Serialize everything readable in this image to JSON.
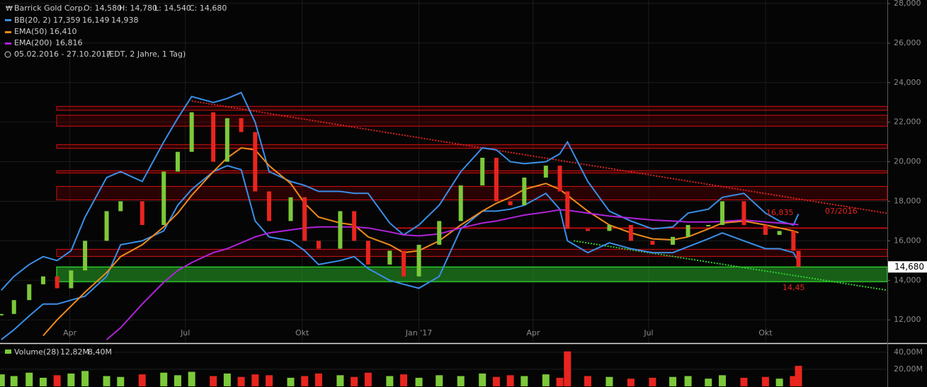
{
  "header": {
    "symbol": "Barrick Gold Corp.",
    "open": "O: 14,580",
    "high": "H: 14,780",
    "low": "L: 14,540",
    "close": "C: 14,680",
    "range": "05.02.2016 - 27.10.2017",
    "range_note": "(EDT, 2 Jahre, 1 Tag)"
  },
  "chart_data": [
    {
      "type": "candlestick",
      "x": [
        2,
        12,
        24,
        35,
        46,
        57,
        68,
        85,
        96,
        113,
        130,
        141,
        152,
        169,
        180,
        191,
        202,
        213,
        230,
        241,
        252,
        269,
        280,
        291,
        308,
        319,
        331,
        347,
        364,
        381,
        392,
        403,
        414,
        431,
        442,
        448,
        464,
        481,
        498,
        515,
        531,
        543,
        559,
        570,
        587,
        604,
        615,
        626,
        630
      ],
      "xlim": [
        1,
        700
      ],
      "xticks": [
        {
          "value": 56,
          "label": "Apr"
        },
        {
          "value": 147,
          "label": "Jul"
        },
        {
          "value": 239,
          "label": "Okt"
        },
        {
          "value": 331,
          "label": "Jan '17"
        },
        {
          "value": 421,
          "label": "Apr"
        },
        {
          "value": 512,
          "label": "Jul"
        },
        {
          "value": 604,
          "label": "Okt"
        }
      ],
      "ylim": [
        10860,
        28180
      ],
      "yticks": [
        {
          "value": 12000,
          "label": "12,000"
        },
        {
          "value": 14000,
          "label": "14,000"
        },
        {
          "value": 16000,
          "label": "16,000"
        },
        {
          "value": 18000,
          "label": "18,000"
        },
        {
          "value": 20000,
          "label": "20,000"
        },
        {
          "value": 22000,
          "label": "22,000"
        },
        {
          "value": 24000,
          "label": "24,000"
        },
        {
          "value": 26000,
          "label": "26,000"
        },
        {
          "value": 28000,
          "label": "28,000"
        }
      ],
      "grid": true,
      "up_color": "#7cc93a",
      "down_color": "#e8251f",
      "values": [
        12300,
        13000,
        13800,
        14200,
        13600,
        14500,
        16000,
        17500,
        18000,
        16800,
        19500,
        20500,
        22500,
        20000,
        22200,
        21500,
        18500,
        17000,
        18200,
        16000,
        15600,
        17500,
        16000,
        14800,
        15500,
        14200,
        15800,
        17000,
        18800,
        20200,
        18000,
        17800,
        19200,
        19800,
        18500,
        16600,
        16500,
        16800,
        16000,
        15800,
        16200,
        16800,
        16800,
        18000,
        16800,
        16300,
        16500,
        15500,
        14680
      ],
      "bands": {
        "name": "BB(20, 2)",
        "color": "#3a8fe8",
        "legend_values": [
          "17,359",
          "16,149",
          "14,938"
        ],
        "upper": [
          13500,
          14200,
          14800,
          15200,
          15000,
          15500,
          17200,
          19200,
          19500,
          19000,
          21000,
          22200,
          23300,
          23000,
          23200,
          23500,
          22000,
          19500,
          19000,
          18800,
          18500,
          18500,
          18400,
          18400,
          16900,
          16300,
          16800,
          17800,
          19500,
          20700,
          20600,
          20000,
          19900,
          20000,
          20400,
          21000,
          19000,
          17500,
          17000,
          16600,
          16700,
          17400,
          17600,
          18200,
          18400,
          17400,
          17000,
          16800,
          17359
        ],
        "lower": [
          11000,
          11500,
          12200,
          12800,
          12800,
          13000,
          13200,
          14200,
          15800,
          16000,
          16500,
          17800,
          18600,
          19500,
          19800,
          19600,
          17000,
          16200,
          16000,
          15500,
          14800,
          15000,
          15200,
          14600,
          14000,
          13800,
          13600,
          14200,
          16600,
          17500,
          17500,
          17600,
          17800,
          18400,
          17600,
          16000,
          15400,
          15900,
          15600,
          15400,
          15400,
          15700,
          16100,
          16400,
          16000,
          15600,
          15600,
          15400,
          14938
        ]
      },
      "series": [
        {
          "name": "EMA(50)",
          "color": "#f08a1c",
          "legend_value": "16,410",
          "values": [
            null,
            null,
            null,
            11200,
            12000,
            12700,
            13400,
            14400,
            15200,
            15800,
            16700,
            17400,
            18300,
            19500,
            20200,
            20700,
            20600,
            19800,
            18900,
            17900,
            17200,
            16900,
            16800,
            16200,
            15800,
            15400,
            15500,
            16000,
            16800,
            17500,
            17900,
            18200,
            18600,
            18900,
            18600,
            18300,
            17500,
            16800,
            16400,
            16100,
            16050,
            16200,
            16600,
            16900,
            17000,
            16800,
            16650,
            16500,
            16410
          ]
        },
        {
          "name": "EMA(200)",
          "color": "#b023d8",
          "legend_value": "16,816",
          "values": [
            null,
            null,
            null,
            null,
            null,
            null,
            null,
            11000,
            11600,
            12800,
            13900,
            14500,
            14900,
            15400,
            15600,
            15900,
            16200,
            16400,
            16550,
            16650,
            16700,
            16700,
            16700,
            16650,
            16450,
            16300,
            16250,
            16350,
            16650,
            16900,
            17000,
            17150,
            17300,
            17450,
            17570,
            17550,
            17400,
            17250,
            17150,
            17050,
            17000,
            16950,
            16950,
            16980,
            17050,
            16950,
            16900,
            16850,
            16816
          ]
        }
      ],
      "red_zones": [
        [
          22600,
          22800
        ],
        [
          21800,
          22350
        ],
        [
          20680,
          20860
        ],
        [
          19430,
          19540
        ],
        [
          18070,
          18750
        ],
        [
          15210,
          15570
        ]
      ],
      "red_level": 16643,
      "green_zone": [
        13930,
        14680
      ],
      "trend_red": [
        [
          152,
          23070
        ],
        [
          700,
          17393
        ]
      ],
      "trend_green": [
        [
          453,
          16000
        ],
        [
          700,
          13500
        ]
      ],
      "annotations": [
        "16,835",
        "07/2016",
        "14,45"
      ],
      "last_price": {
        "value": 14680,
        "label": "14,680"
      }
    },
    {
      "type": "bar",
      "name": "Volume(28)",
      "legend_values": [
        "12,82M",
        "8,40M"
      ],
      "ylim": [
        0,
        49
      ],
      "yticks": [
        {
          "value": 20,
          "label": "20,00M"
        },
        {
          "value": 40,
          "label": "40,00M"
        }
      ],
      "values": [
        14,
        12,
        16,
        10,
        13,
        15,
        18,
        12,
        11,
        14,
        16,
        13,
        17,
        12,
        15,
        11,
        14,
        13,
        10,
        12,
        15,
        13,
        11,
        16,
        12,
        14,
        10,
        13,
        12,
        15,
        11,
        13,
        12,
        14,
        10,
        41,
        12,
        11,
        9,
        10,
        11,
        12,
        9,
        13,
        10,
        11,
        9,
        12,
        24
      ]
    }
  ]
}
